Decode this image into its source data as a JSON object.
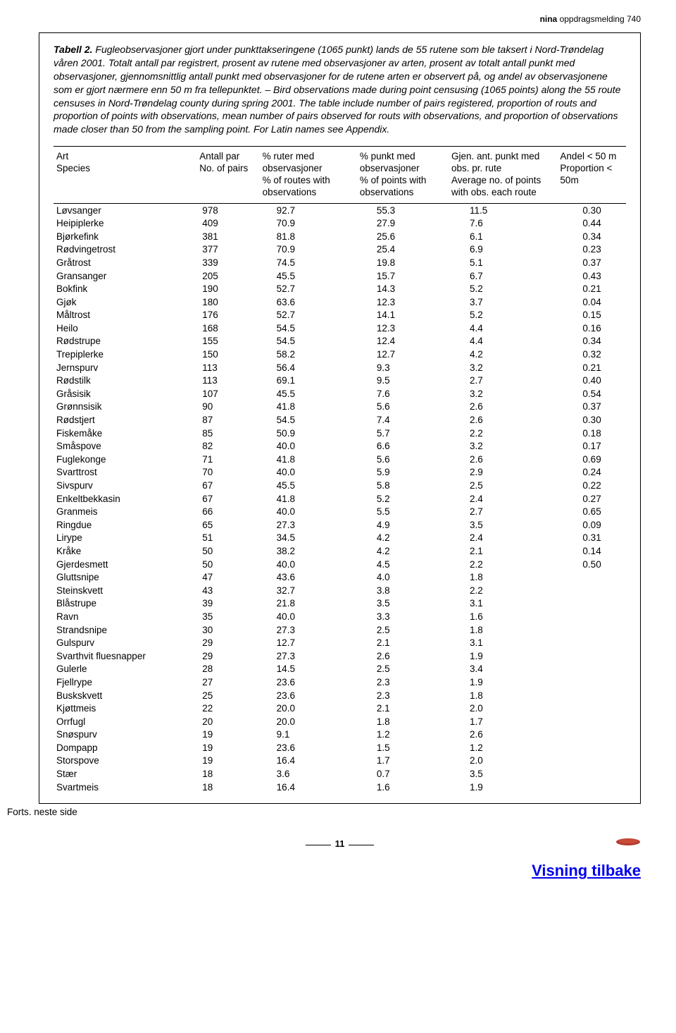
{
  "header": {
    "label_bold": "nina",
    "label_rest": " oppdragsmelding 740"
  },
  "caption": {
    "label": "Tabell 2.",
    "text": " Fugleobservasjoner gjort under punkttakseringene (1065 punkt) lands de 55 rutene som ble taksert i Nord-Trøndelag våren 2001. Totalt antall par registrert, prosent av rutene med observasjoner av arten, prosent av totalt antall punkt med observasjoner, gjennomsnittlig antall punkt med observasjoner for de rutene arten er observert på, og andel av observasjonene som er gjort nærmere enn 50 m fra tellepunktet. – Bird observations made during point censusing (1065 points) along the 55 route censuses in Nord-Trøndelag county during spring 2001. The table include number of pairs registered, proportion of routs and proportion of points with observations, mean number of pairs observed for routs with observations, and proportion of observations made closer than 50 from the sampling point. For Latin names see Appendix."
  },
  "columns": {
    "species": "Art\nSpecies",
    "pairs": "Antall par\nNo. of pairs",
    "ruter": "% ruter med\nobservasjoner\n% of routes with\nobservations",
    "punkt": "% punkt med\nobservasjoner\n% of points with\nobservations",
    "gjen": "Gjen. ant. punkt med\nobs. pr. rute\nAverage no. of points\nwith obs. each route",
    "andel": "Andel < 50 m\nProportion < 50m"
  },
  "rows": [
    [
      "Løvsanger",
      "978",
      "92.7",
      "55.3",
      "11.5",
      "0.30"
    ],
    [
      "Heipiplerke",
      "409",
      "70.9",
      "27.9",
      "7.6",
      "0.44"
    ],
    [
      "Bjørkefink",
      "381",
      "81.8",
      "25.6",
      "6.1",
      "0.34"
    ],
    [
      "Rødvingetrost",
      "377",
      "70.9",
      "25.4",
      "6.9",
      "0.23"
    ],
    [
      "Gråtrost",
      "339",
      "74.5",
      "19.8",
      "5.1",
      "0.37"
    ],
    [
      "Gransanger",
      "205",
      "45.5",
      "15.7",
      "6.7",
      "0.43"
    ],
    [
      "Bokfink",
      "190",
      "52.7",
      "14.3",
      "5.2",
      "0.21"
    ],
    [
      "Gjøk",
      "180",
      "63.6",
      "12.3",
      "3.7",
      "0.04"
    ],
    [
      "Måltrost",
      "176",
      "52.7",
      "14.1",
      "5.2",
      "0.15"
    ],
    [
      "Heilo",
      "168",
      "54.5",
      "12.3",
      "4.4",
      "0.16"
    ],
    [
      "Rødstrupe",
      "155",
      "54.5",
      "12.4",
      "4.4",
      "0.34"
    ],
    [
      "Trepiplerke",
      "150",
      "58.2",
      "12.7",
      "4.2",
      "0.32"
    ],
    [
      "Jernspurv",
      "113",
      "56.4",
      "9.3",
      "3.2",
      "0.21"
    ],
    [
      "Rødstilk",
      "113",
      "69.1",
      "9.5",
      "2.7",
      "0.40"
    ],
    [
      "Gråsisik",
      "107",
      "45.5",
      "7.6",
      "3.2",
      "0.54"
    ],
    [
      "Grønnsisik",
      "90",
      "41.8",
      "5.6",
      "2.6",
      "0.37"
    ],
    [
      "Rødstjert",
      "87",
      "54.5",
      "7.4",
      "2.6",
      "0.30"
    ],
    [
      "Fiskemåke",
      "85",
      "50.9",
      "5.7",
      "2.2",
      "0.18"
    ],
    [
      "Småspove",
      "82",
      "40.0",
      "6.6",
      "3.2",
      "0.17"
    ],
    [
      "Fuglekonge",
      "71",
      "41.8",
      "5.6",
      "2.6",
      "0.69"
    ],
    [
      "Svarttrost",
      "70",
      "40.0",
      "5.9",
      "2.9",
      "0.24"
    ],
    [
      "Sivspurv",
      "67",
      "45.5",
      "5.8",
      "2.5",
      "0.22"
    ],
    [
      "Enkeltbekkasin",
      "67",
      "41.8",
      "5.2",
      "2.4",
      "0.27"
    ],
    [
      "Granmeis",
      "66",
      "40.0",
      "5.5",
      "2.7",
      "0.65"
    ],
    [
      "Ringdue",
      "65",
      "27.3",
      "4.9",
      "3.5",
      "0.09"
    ],
    [
      "Lirype",
      "51",
      "34.5",
      "4.2",
      "2.4",
      "0.31"
    ],
    [
      "Kråke",
      "50",
      "38.2",
      "4.2",
      "2.1",
      "0.14"
    ],
    [
      "Gjerdesmett",
      "50",
      "40.0",
      "4.5",
      "2.2",
      "0.50"
    ],
    [
      "Gluttsnipe",
      "47",
      "43.6",
      "4.0",
      "1.8",
      ""
    ],
    [
      "Steinskvett",
      "43",
      "32.7",
      "3.8",
      "2.2",
      ""
    ],
    [
      "Blåstrupe",
      "39",
      "21.8",
      "3.5",
      "3.1",
      ""
    ],
    [
      "Ravn",
      "35",
      "40.0",
      "3.3",
      "1.6",
      ""
    ],
    [
      "Strandsnipe",
      "30",
      "27.3",
      "2.5",
      "1.8",
      ""
    ],
    [
      "Gulspurv",
      "29",
      "12.7",
      "2.1",
      "3.1",
      ""
    ],
    [
      "Svarthvit fluesnapper",
      "29",
      "27.3",
      "2.6",
      "1.9",
      ""
    ],
    [
      "Gulerle",
      "28",
      "14.5",
      "2.5",
      "3.4",
      ""
    ],
    [
      "Fjellrype",
      "27",
      "23.6",
      "2.3",
      "1.9",
      ""
    ],
    [
      "Buskskvett",
      "25",
      "23.6",
      "2.3",
      "1.8",
      ""
    ],
    [
      "Kjøttmeis",
      "22",
      "20.0",
      "2.1",
      "2.0",
      ""
    ],
    [
      "Orrfugl",
      "20",
      "20.0",
      "1.8",
      "1.7",
      ""
    ],
    [
      "Snøspurv",
      "19",
      "9.1",
      "1.2",
      "2.6",
      ""
    ],
    [
      "Dompapp",
      "19",
      "23.6",
      "1.5",
      "1.2",
      ""
    ],
    [
      "Storspove",
      "19",
      "16.4",
      "1.7",
      "2.0",
      ""
    ],
    [
      "Stær",
      "18",
      "3.6",
      "0.7",
      "3.5",
      ""
    ],
    [
      "Svartmeis",
      "18",
      "16.4",
      "1.6",
      "1.9",
      ""
    ]
  ],
  "forts": "Forts. neste side",
  "page_number": "11",
  "footer": {
    "visning": "Visning tilbake"
  },
  "colors": {
    "red": "#c0392b",
    "text": "#000000"
  }
}
